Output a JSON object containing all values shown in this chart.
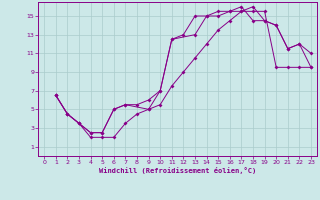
{
  "bg_color": "#cce8e8",
  "line_color": "#880088",
  "grid_color": "#aacccc",
  "xlabel": "Windchill (Refroidissement éolien,°C)",
  "xlim": [
    -0.5,
    23.5
  ],
  "ylim": [
    0,
    16.5
  ],
  "xticks": [
    0,
    1,
    2,
    3,
    4,
    5,
    6,
    7,
    8,
    9,
    10,
    11,
    12,
    13,
    14,
    15,
    16,
    17,
    18,
    19,
    20,
    21,
    22,
    23
  ],
  "yticks": [
    1,
    3,
    5,
    7,
    9,
    11,
    13,
    15
  ],
  "curve1_x": [
    1,
    2,
    3,
    4,
    5,
    6,
    7,
    8,
    9,
    10,
    11,
    12,
    13,
    14,
    15,
    16,
    17,
    18,
    19,
    20,
    21,
    22,
    23
  ],
  "curve1_y": [
    6.5,
    4.5,
    3.5,
    2.0,
    2.0,
    2.0,
    3.5,
    4.5,
    5.0,
    5.5,
    7.5,
    9.0,
    10.5,
    12.0,
    13.5,
    14.5,
    15.5,
    15.5,
    15.5,
    9.5,
    9.5,
    9.5,
    9.5
  ],
  "curve2_x": [
    1,
    2,
    3,
    4,
    5,
    6,
    7,
    9,
    10,
    11,
    13,
    14,
    15,
    16,
    17,
    18,
    19,
    20,
    21,
    22,
    23
  ],
  "curve2_y": [
    6.5,
    4.5,
    3.5,
    2.5,
    2.5,
    5.0,
    5.5,
    5.0,
    7.0,
    12.5,
    13.0,
    15.0,
    15.0,
    15.5,
    15.5,
    16.0,
    14.5,
    14.0,
    11.5,
    12.0,
    11.0
  ],
  "curve3_x": [
    1,
    2,
    3,
    4,
    5,
    6,
    7,
    8,
    9,
    10,
    11,
    12,
    13,
    14,
    15,
    16,
    17,
    18,
    19,
    20,
    21,
    22,
    23
  ],
  "curve3_y": [
    6.5,
    4.5,
    3.5,
    2.5,
    2.5,
    5.0,
    5.5,
    5.5,
    6.0,
    7.0,
    12.5,
    13.0,
    15.0,
    15.0,
    15.5,
    15.5,
    16.0,
    14.5,
    14.5,
    14.0,
    11.5,
    12.0,
    9.5
  ]
}
